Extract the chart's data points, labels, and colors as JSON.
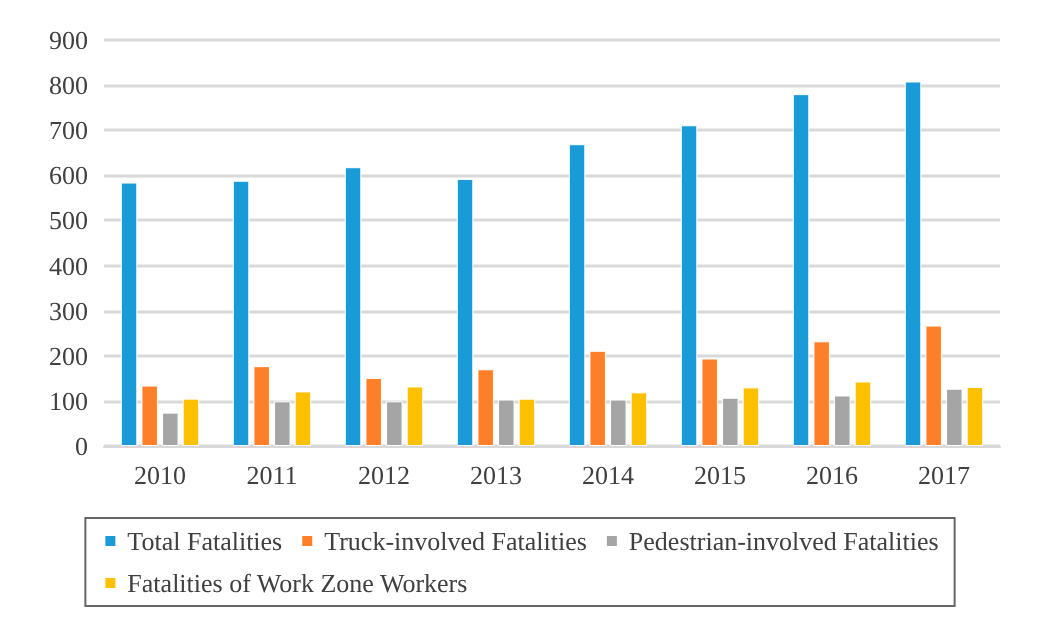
{
  "chart_data": {
    "type": "bar",
    "categories": [
      "2010",
      "2011",
      "2012",
      "2013",
      "2014",
      "2015",
      "2016",
      "2017"
    ],
    "series": [
      {
        "name": "Total Fatalities",
        "color": "#1a9bd7",
        "values": [
          584,
          588,
          618,
          592,
          669,
          711,
          780,
          808
        ]
      },
      {
        "name": "Truck-involved Fatalities",
        "color": "#fd7f28",
        "values": [
          134,
          177,
          151,
          170,
          211,
          194,
          232,
          267
        ]
      },
      {
        "name": "Pedestrian-involved Fatalities",
        "color": "#a5a5a5",
        "values": [
          74,
          99,
          99,
          103,
          103,
          107,
          112,
          127
        ]
      },
      {
        "name": "Fatalities of Work Zone Workers",
        "color": "#ffc000",
        "values": [
          105,
          121,
          132,
          105,
          119,
          130,
          143,
          131
        ]
      }
    ],
    "ylim": [
      0,
      900
    ],
    "yticks": [
      0,
      100,
      200,
      300,
      400,
      500,
      600,
      700,
      800,
      900
    ],
    "grid": "y",
    "legend": "bottom"
  }
}
